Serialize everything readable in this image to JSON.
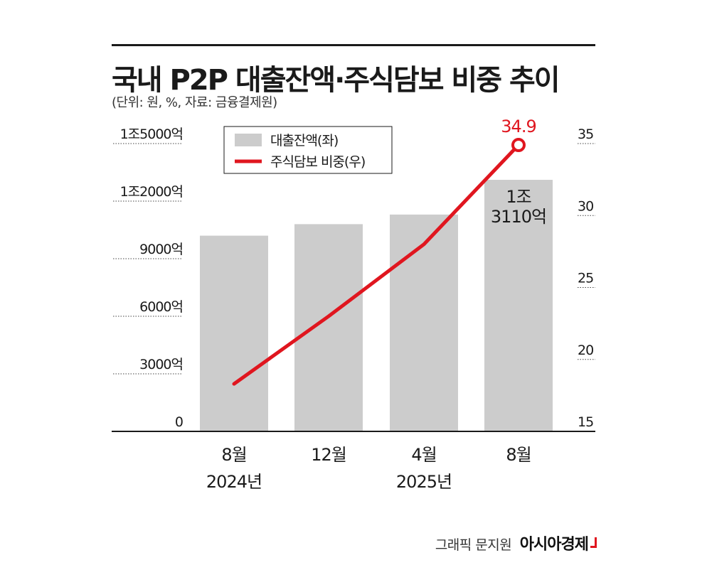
{
  "title": "국내 P2P 대출잔액·주식담보 비중 추이",
  "subtitle": "(단위: 원, %, 자료: 금융결제원)",
  "credit": {
    "text": "그래픽 문지원",
    "brand": "아시아경제"
  },
  "colors": {
    "bar": "#cccccc",
    "line": "#e0161f",
    "text": "#1a1a1a",
    "highlight": "#e0161f"
  },
  "chart_data": {
    "type": "bar+line",
    "title": "국내 P2P 대출잔액·주식담보 비중 추이",
    "categories": [
      {
        "month": "8월",
        "year": "2024년"
      },
      {
        "month": "12월",
        "year": ""
      },
      {
        "month": "4월",
        "year": "2025년"
      },
      {
        "month": "8월",
        "year": ""
      }
    ],
    "series": [
      {
        "name": "대출잔액(좌)",
        "type": "bar",
        "axis": "left",
        "unit": "억원",
        "values": [
          10200,
          10800,
          11300,
          13110
        ]
      },
      {
        "name": "주식담보 비중(우)",
        "type": "line",
        "axis": "right",
        "unit": "%",
        "values": [
          18.3,
          23.0,
          28.0,
          34.9
        ]
      }
    ],
    "left_axis": {
      "range": [
        0,
        15000
      ],
      "ticks": [
        {
          "value": 0,
          "label": "0"
        },
        {
          "value": 3000,
          "label": "3000억"
        },
        {
          "value": 6000,
          "label": "6000억"
        },
        {
          "value": 9000,
          "label": "9000억"
        },
        {
          "value": 12000,
          "label": "1조2000억"
        },
        {
          "value": 15000,
          "label": "1조5000억"
        }
      ]
    },
    "right_axis": {
      "range": [
        15,
        35
      ],
      "ticks": [
        {
          "value": 15,
          "label": "15"
        },
        {
          "value": 20,
          "label": "20"
        },
        {
          "value": 25,
          "label": "25"
        },
        {
          "value": 30,
          "label": "30"
        },
        {
          "value": 35,
          "label": "35"
        }
      ]
    },
    "annotations": {
      "bar_label": {
        "index": 3,
        "lines": [
          "1조",
          "3110억"
        ]
      },
      "line_label": {
        "index": 3,
        "text": "34.9"
      }
    },
    "legend": {
      "position": "top-left",
      "items": [
        {
          "label": "대출잔액(좌)",
          "kind": "bar"
        },
        {
          "label": "주식담보 비중(우)",
          "kind": "line"
        }
      ]
    }
  }
}
